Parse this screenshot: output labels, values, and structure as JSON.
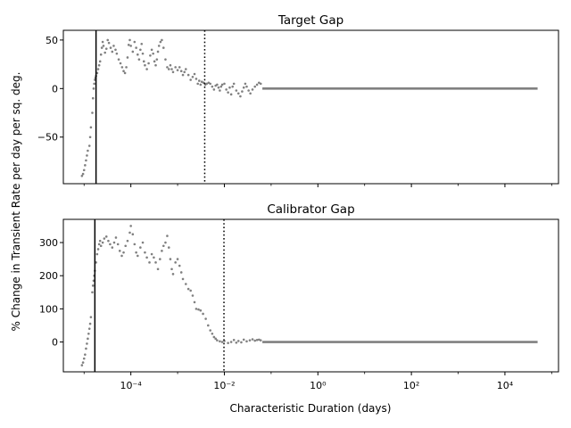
{
  "figure": {
    "ylabel": "% Change in Transient Rate per day per sq. deg.",
    "xlabel": "Characteristic Duration (days)"
  },
  "chart_data": [
    {
      "type": "scatter",
      "title": "Target Gap",
      "xscale": "log",
      "xlim": [
        3.6e-06,
        140000.0
      ],
      "ylim": [
        -98,
        60
      ],
      "yticks": [
        50,
        0,
        -50
      ],
      "ytick_labels": [
        "50",
        "0",
        "−50"
      ],
      "xticks_minor_only": true,
      "marker_color": "#808080",
      "vline_solid": 1.8e-05,
      "vline_dotted": 0.0038,
      "points": [
        [
          9e-06,
          -90
        ],
        [
          9.5e-06,
          -88
        ],
        [
          1e-05,
          -84
        ],
        [
          1.05e-05,
          -79
        ],
        [
          1.1e-05,
          -74
        ],
        [
          1.15e-05,
          -69
        ],
        [
          1.2e-05,
          -64
        ],
        [
          1.3e-05,
          -59
        ],
        [
          1.35e-05,
          -50
        ],
        [
          1.4e-05,
          -40
        ],
        [
          1.5e-05,
          -25
        ],
        [
          1.55e-05,
          -10
        ],
        [
          1.6e-05,
          0
        ],
        [
          1.65e-05,
          5
        ],
        [
          1.7e-05,
          9
        ],
        [
          1.75e-05,
          11
        ],
        [
          1.8e-05,
          13
        ],
        [
          1.9e-05,
          16
        ],
        [
          2e-05,
          20
        ],
        [
          2.1e-05,
          24
        ],
        [
          2.2e-05,
          28
        ],
        [
          2.3e-05,
          35
        ],
        [
          2.4e-05,
          42
        ],
        [
          2.5e-05,
          48
        ],
        [
          2.6e-05,
          44
        ],
        [
          2.8e-05,
          37
        ],
        [
          3e-05,
          41
        ],
        [
          3.2e-05,
          50
        ],
        [
          3.4e-05,
          47
        ],
        [
          3.7e-05,
          42
        ],
        [
          4e-05,
          38
        ],
        [
          4.3e-05,
          44
        ],
        [
          4.7e-05,
          40
        ],
        [
          5e-05,
          36
        ],
        [
          5.5e-05,
          30
        ],
        [
          6e-05,
          26
        ],
        [
          6.5e-05,
          22
        ],
        [
          7e-05,
          18
        ],
        [
          7.5e-05,
          16
        ],
        [
          8e-05,
          22
        ],
        [
          8.5e-05,
          32
        ],
        [
          9e-05,
          45
        ],
        [
          9.5e-05,
          50
        ],
        [
          0.0001,
          44
        ],
        [
          0.00011,
          38
        ],
        [
          0.00012,
          48
        ],
        [
          0.00013,
          42
        ],
        [
          0.00014,
          35
        ],
        [
          0.00015,
          30
        ],
        [
          0.00016,
          40
        ],
        [
          0.00017,
          46
        ],
        [
          0.00018,
          36
        ],
        [
          0.00019,
          28
        ],
        [
          0.0002,
          24
        ],
        [
          0.00022,
          20
        ],
        [
          0.00024,
          26
        ],
        [
          0.00026,
          34
        ],
        [
          0.00028,
          40
        ],
        [
          0.0003,
          36
        ],
        [
          0.00032,
          28
        ],
        [
          0.00034,
          24
        ],
        [
          0.00036,
          30
        ],
        [
          0.00038,
          38
        ],
        [
          0.0004,
          44
        ],
        [
          0.00043,
          48
        ],
        [
          0.00046,
          50
        ],
        [
          0.0005,
          42
        ],
        [
          0.00055,
          30
        ],
        [
          0.0006,
          22
        ],
        [
          0.00065,
          20
        ],
        [
          0.0007,
          24
        ],
        [
          0.00075,
          20
        ],
        [
          0.0008,
          17
        ],
        [
          0.0009,
          22
        ],
        [
          0.001,
          19
        ],
        [
          0.0011,
          22
        ],
        [
          0.0012,
          18
        ],
        [
          0.0013,
          14
        ],
        [
          0.0014,
          17
        ],
        [
          0.0015,
          20
        ],
        [
          0.0017,
          14
        ],
        [
          0.0019,
          9
        ],
        [
          0.0021,
          12
        ],
        [
          0.0023,
          15
        ],
        [
          0.0025,
          10
        ],
        [
          0.0027,
          5
        ],
        [
          0.0029,
          8
        ],
        [
          0.0031,
          4
        ],
        [
          0.0033,
          7
        ],
        [
          0.0036,
          6
        ],
        [
          0.0039,
          4
        ],
        [
          0.0042,
          5
        ],
        [
          0.0046,
          6
        ],
        [
          0.005,
          5
        ],
        [
          0.0055,
          2
        ],
        [
          0.006,
          -1
        ],
        [
          0.0065,
          3
        ],
        [
          0.007,
          4
        ],
        [
          0.0075,
          1
        ],
        [
          0.008,
          -2
        ],
        [
          0.0085,
          2
        ],
        [
          0.009,
          4
        ],
        [
          0.01,
          5
        ],
        [
          0.011,
          -1
        ],
        [
          0.012,
          -4
        ],
        [
          0.013,
          1
        ],
        [
          0.014,
          -6
        ],
        [
          0.015,
          2
        ],
        [
          0.016,
          5
        ],
        [
          0.018,
          -2
        ],
        [
          0.02,
          -5
        ],
        [
          0.022,
          -8
        ],
        [
          0.024,
          -3
        ],
        [
          0.026,
          1
        ],
        [
          0.028,
          5
        ],
        [
          0.03,
          2
        ],
        [
          0.033,
          -2
        ],
        [
          0.036,
          -5
        ],
        [
          0.04,
          -1
        ],
        [
          0.045,
          2
        ],
        [
          0.05,
          4
        ],
        [
          0.055,
          6
        ],
        [
          0.06,
          5
        ]
      ],
      "flat_segment": {
        "x_from": 0.065,
        "x_to": 50000,
        "y": 0
      }
    },
    {
      "type": "scatter",
      "title": "Calibrator Gap",
      "xscale": "log",
      "xlim": [
        3.6e-06,
        140000.0
      ],
      "ylim": [
        -90,
        370
      ],
      "yticks": [
        300,
        200,
        100,
        0
      ],
      "ytick_labels": [
        "300",
        "200",
        "100",
        "0"
      ],
      "xticks": [
        0.0001,
        0.01,
        1,
        100,
        10000
      ],
      "xtick_labels": [
        "10⁻⁴",
        "10⁻²",
        "10⁰",
        "10²",
        "10⁴"
      ],
      "marker_color": "#808080",
      "vline_solid": 1.7e-05,
      "vline_dotted": 0.0098,
      "points": [
        [
          9e-06,
          -70
        ],
        [
          9.5e-06,
          -62
        ],
        [
          1e-05,
          -50
        ],
        [
          1.05e-05,
          -38
        ],
        [
          1.1e-05,
          -20
        ],
        [
          1.15e-05,
          -5
        ],
        [
          1.2e-05,
          10
        ],
        [
          1.25e-05,
          25
        ],
        [
          1.3e-05,
          40
        ],
        [
          1.35e-05,
          55
        ],
        [
          1.4e-05,
          75
        ],
        [
          1.5e-05,
          150
        ],
        [
          1.55e-05,
          170
        ],
        [
          1.6e-05,
          185
        ],
        [
          1.65e-05,
          200
        ],
        [
          1.7e-05,
          215
        ],
        [
          1.8e-05,
          240
        ],
        [
          1.9e-05,
          265
        ],
        [
          2e-05,
          280
        ],
        [
          2.1e-05,
          295
        ],
        [
          2.2e-05,
          305
        ],
        [
          2.3e-05,
          290
        ],
        [
          2.5e-05,
          300
        ],
        [
          2.7e-05,
          312
        ],
        [
          3e-05,
          318
        ],
        [
          3.3e-05,
          305
        ],
        [
          3.6e-05,
          295
        ],
        [
          4e-05,
          285
        ],
        [
          4.4e-05,
          300
        ],
        [
          4.8e-05,
          315
        ],
        [
          5.3e-05,
          295
        ],
        [
          5.8e-05,
          275
        ],
        [
          6.4e-05,
          260
        ],
        [
          7e-05,
          270
        ],
        [
          7.7e-05,
          290
        ],
        [
          8.5e-05,
          305
        ],
        [
          9.5e-05,
          330
        ],
        [
          0.0001,
          350
        ],
        [
          0.00011,
          325
        ],
        [
          0.00012,
          295
        ],
        [
          0.00013,
          270
        ],
        [
          0.00014,
          260
        ],
        [
          0.00016,
          285
        ],
        [
          0.00018,
          300
        ],
        [
          0.0002,
          270
        ],
        [
          0.00022,
          255
        ],
        [
          0.00025,
          240
        ],
        [
          0.00028,
          265
        ],
        [
          0.00031,
          255
        ],
        [
          0.00034,
          240
        ],
        [
          0.00038,
          220
        ],
        [
          0.00042,
          250
        ],
        [
          0.00046,
          275
        ],
        [
          0.0005,
          290
        ],
        [
          0.00055,
          300
        ],
        [
          0.0006,
          320
        ],
        [
          0.00065,
          285
        ],
        [
          0.0007,
          250
        ],
        [
          0.00075,
          220
        ],
        [
          0.0008,
          205
        ],
        [
          0.0009,
          240
        ],
        [
          0.001,
          250
        ],
        [
          0.0011,
          230
        ],
        [
          0.0012,
          210
        ],
        [
          0.0013,
          190
        ],
        [
          0.0015,
          175
        ],
        [
          0.0017,
          160
        ],
        [
          0.0019,
          155
        ],
        [
          0.0021,
          140
        ],
        [
          0.0023,
          120
        ],
        [
          0.0025,
          100
        ],
        [
          0.0028,
          98
        ],
        [
          0.0031,
          95
        ],
        [
          0.0035,
          85
        ],
        [
          0.004,
          70
        ],
        [
          0.0045,
          50
        ],
        [
          0.005,
          35
        ],
        [
          0.0055,
          25
        ],
        [
          0.006,
          15
        ],
        [
          0.0065,
          10
        ],
        [
          0.007,
          5
        ],
        [
          0.008,
          2
        ],
        [
          0.009,
          0
        ],
        [
          0.01,
          3
        ],
        [
          0.012,
          -3
        ],
        [
          0.014,
          0
        ],
        [
          0.016,
          6
        ],
        [
          0.018,
          -2
        ],
        [
          0.02,
          3
        ],
        [
          0.023,
          -1
        ],
        [
          0.026,
          7
        ],
        [
          0.03,
          2
        ],
        [
          0.035,
          5
        ],
        [
          0.04,
          8
        ],
        [
          0.045,
          4
        ],
        [
          0.05,
          6
        ],
        [
          0.055,
          7
        ],
        [
          0.06,
          5
        ]
      ],
      "flat_segment": {
        "x_from": 0.065,
        "x_to": 50000,
        "y": 0
      }
    }
  ]
}
